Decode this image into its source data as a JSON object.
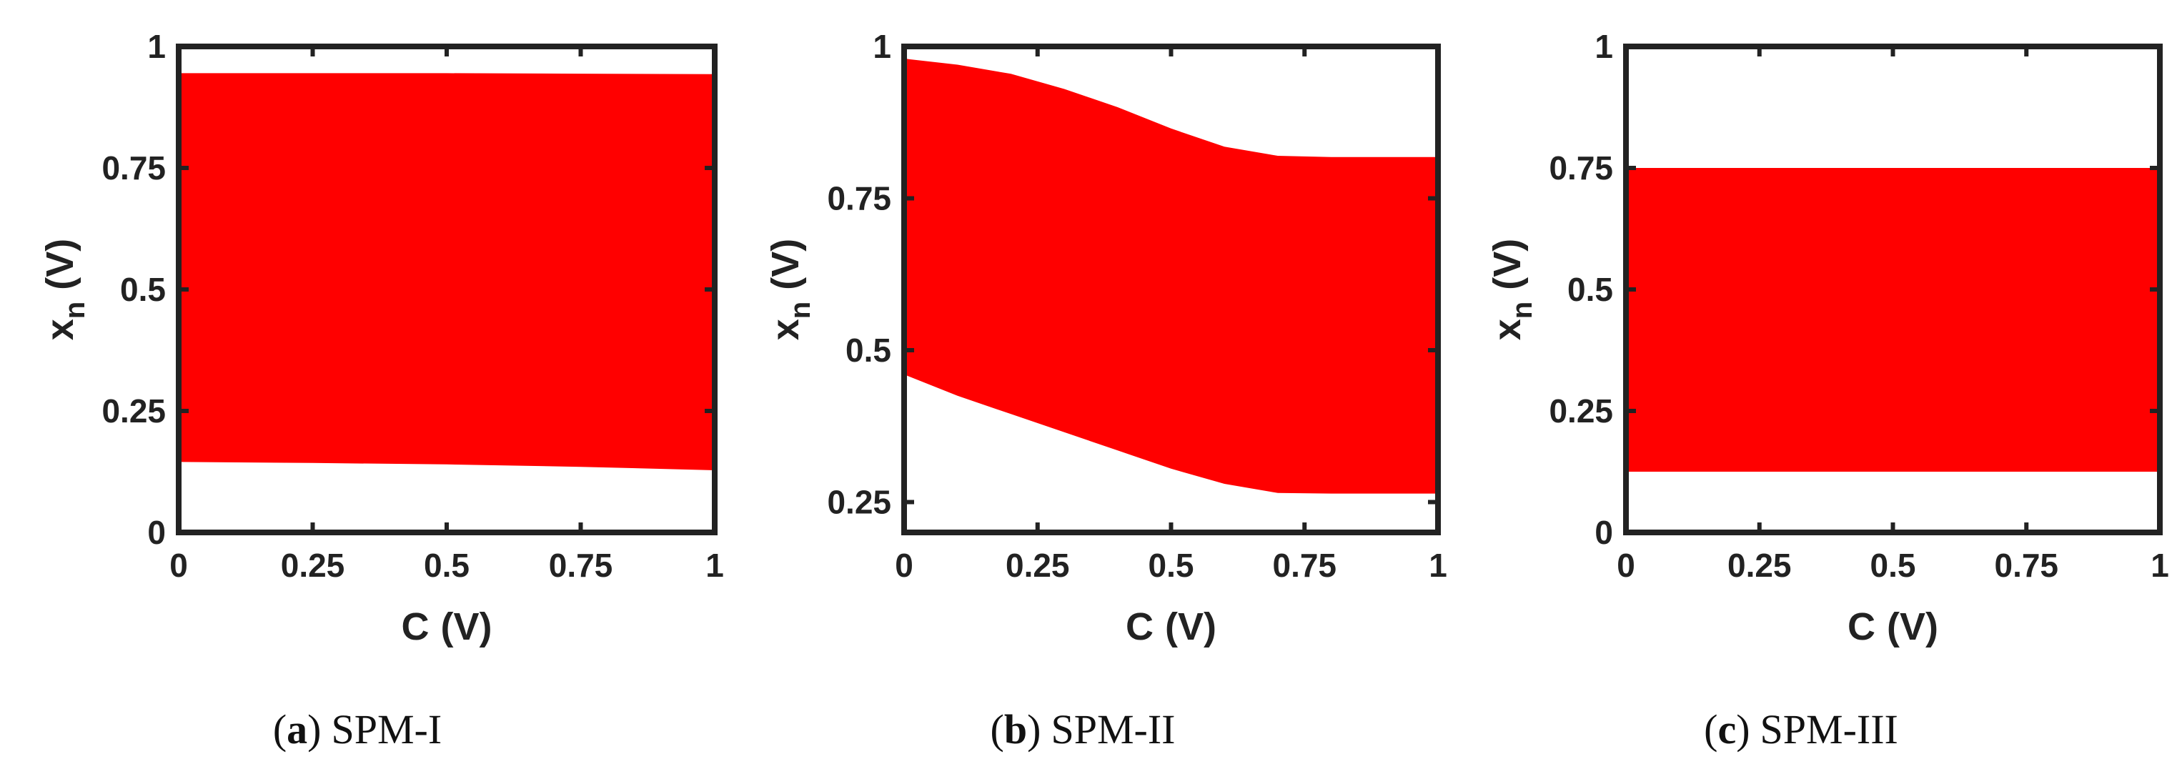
{
  "chart_data": [
    {
      "type": "area",
      "panel": "a",
      "caption_letter": "a",
      "caption_text": "SPM-I",
      "xlabel_main": "C",
      "xlabel_unit": "(V)",
      "ylabel_main": "x",
      "ylabel_sub": "n",
      "ylabel_unit": "(V)",
      "xlim": [
        0,
        1
      ],
      "ylim": [
        0,
        1
      ],
      "xticks": [
        0,
        0.25,
        0.5,
        0.75,
        1
      ],
      "xtick_labels": [
        "0",
        "0.25",
        "0.5",
        "0.75",
        "1"
      ],
      "yticks": [
        0,
        0.25,
        0.5,
        0.75,
        1
      ],
      "ytick_labels": [
        "0",
        "0.25",
        "0.5",
        "0.75",
        "1"
      ],
      "fill_color": "#ff0000",
      "x": [
        0,
        0.25,
        0.5,
        0.75,
        1
      ],
      "upper": [
        0.945,
        0.945,
        0.945,
        0.944,
        0.943
      ],
      "lower": [
        0.145,
        0.143,
        0.14,
        0.135,
        0.128
      ]
    },
    {
      "type": "area",
      "panel": "b",
      "caption_letter": "b",
      "caption_text": "SPM-II",
      "xlabel_main": "C",
      "xlabel_unit": "(V)",
      "ylabel_main": "x",
      "ylabel_sub": "n",
      "ylabel_unit": "(V)",
      "xlim": [
        0,
        1
      ],
      "ylim": [
        0.2,
        1
      ],
      "xticks": [
        0,
        0.25,
        0.5,
        0.75,
        1
      ],
      "xtick_labels": [
        "0",
        "0.25",
        "0.5",
        "0.75",
        "1"
      ],
      "yticks": [
        0.25,
        0.5,
        0.75,
        1
      ],
      "ytick_labels": [
        "0.25",
        "0.5",
        "0.75",
        "1"
      ],
      "fill_color": "#ff0000",
      "x": [
        0,
        0.1,
        0.2,
        0.3,
        0.4,
        0.5,
        0.6,
        0.7,
        0.8,
        0.9,
        1
      ],
      "upper": [
        0.98,
        0.97,
        0.955,
        0.93,
        0.9,
        0.865,
        0.835,
        0.82,
        0.818,
        0.818,
        0.818
      ],
      "lower": [
        0.46,
        0.425,
        0.395,
        0.365,
        0.335,
        0.305,
        0.28,
        0.265,
        0.264,
        0.264,
        0.264
      ]
    },
    {
      "type": "area",
      "panel": "c",
      "caption_letter": "c",
      "caption_text": "SPM-III",
      "xlabel_main": "C",
      "xlabel_unit": "(V)",
      "ylabel_main": "x",
      "ylabel_sub": "n",
      "ylabel_unit": "(V)",
      "xlim": [
        0,
        1
      ],
      "ylim": [
        0,
        1
      ],
      "xticks": [
        0,
        0.25,
        0.5,
        0.75,
        1
      ],
      "xtick_labels": [
        "0",
        "0.25",
        "0.5",
        "0.75",
        "1"
      ],
      "yticks": [
        0,
        0.25,
        0.5,
        0.75,
        1
      ],
      "ytick_labels": [
        "0",
        "0.25",
        "0.5",
        "0.75",
        "1"
      ],
      "fill_color": "#ff0000",
      "x": [
        0,
        0.25,
        0.5,
        0.75,
        1
      ],
      "upper": [
        0.75,
        0.75,
        0.75,
        0.75,
        0.75
      ],
      "lower": [
        0.125,
        0.125,
        0.125,
        0.125,
        0.125
      ]
    }
  ]
}
